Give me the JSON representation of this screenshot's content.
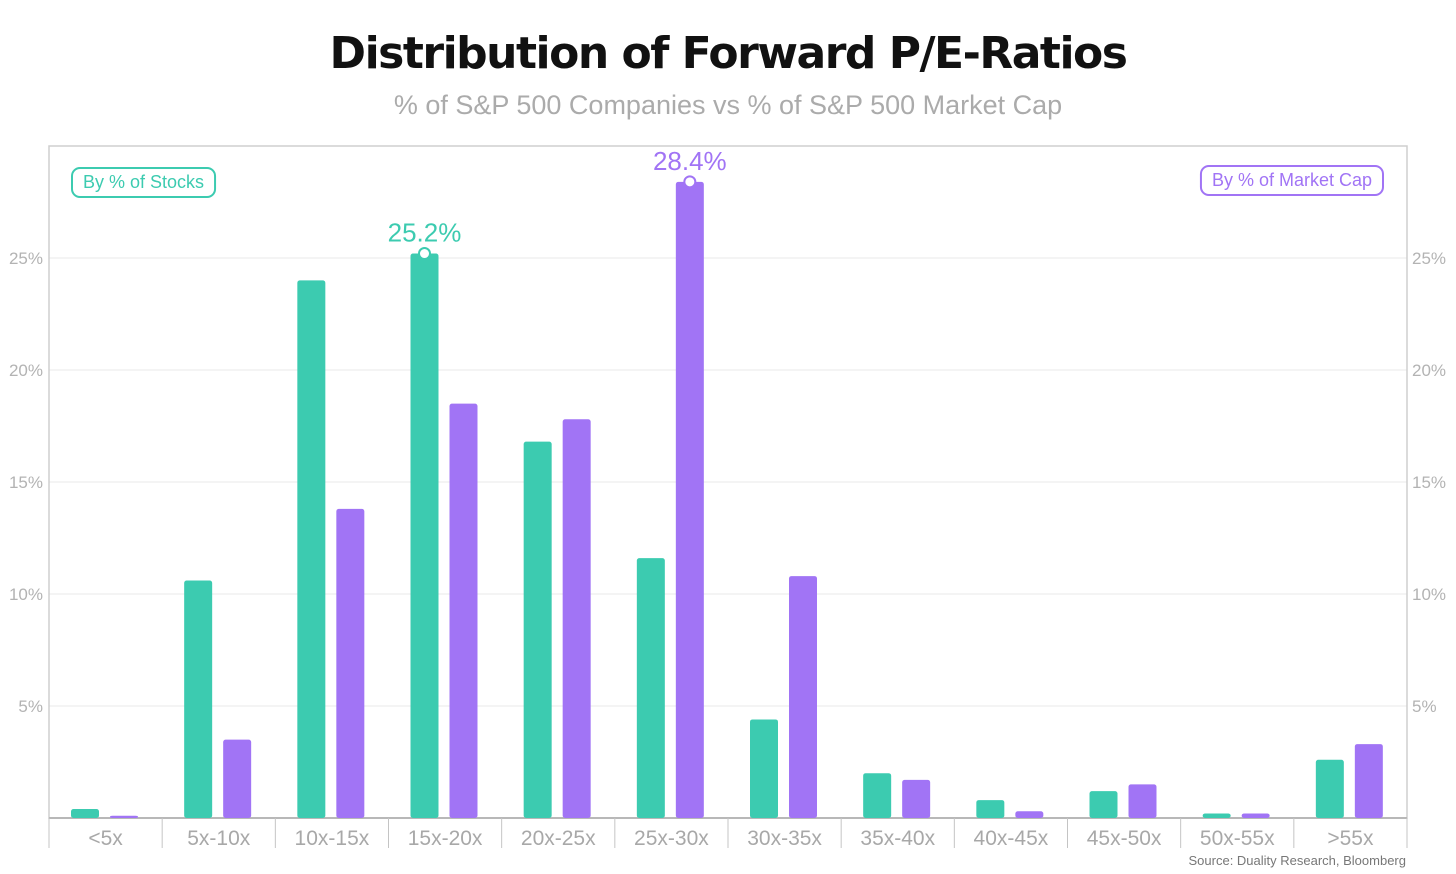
{
  "header": {
    "title": "Distribution of Forward P/E-Ratios",
    "subtitle": "% of S&P 500 Companies vs % of S&P 500 Market Cap"
  },
  "footer": {
    "source": "Source: Duality Research, Bloomberg"
  },
  "colors": {
    "stocks": "#3ccbb0",
    "market_cap": "#a174f5",
    "grid": "#e8e8e8",
    "frame": "#cfcfcf"
  },
  "chart_data": {
    "type": "bar",
    "title": "Distribution of Forward P/E-Ratios",
    "subtitle": "% of S&P 500 Companies vs % of S&P 500 Market Cap",
    "categories": [
      "<5x",
      "5x-10x",
      "10x-15x",
      "15x-20x",
      "20x-25x",
      "25x-30x",
      "30x-35x",
      "35x-40x",
      "40x-45x",
      "45x-50x",
      "50x-55x",
      ">55x"
    ],
    "series": [
      {
        "name": "By % of Stocks",
        "values": [
          0.4,
          10.6,
          24.0,
          25.2,
          16.8,
          11.6,
          4.4,
          2.0,
          0.8,
          1.2,
          0.2,
          2.6
        ]
      },
      {
        "name": "By % of Market Cap",
        "values": [
          0.1,
          3.5,
          13.8,
          18.5,
          17.8,
          28.4,
          10.8,
          1.7,
          0.3,
          1.5,
          0.2,
          3.3
        ]
      }
    ],
    "ylim": [
      0,
      30
    ],
    "yticks": [
      5,
      10,
      15,
      20,
      25
    ],
    "ytick_labels": [
      "5%",
      "10%",
      "15%",
      "20%",
      "25%"
    ],
    "y_axes": "left and right",
    "grid": true,
    "legend": [
      {
        "label": "By % of Stocks",
        "placement": "top-left"
      },
      {
        "label": "By % of Market Cap",
        "placement": "top-right"
      }
    ],
    "annotations": [
      {
        "series": 0,
        "category": "15x-20x",
        "text": "25.2%"
      },
      {
        "series": 1,
        "category": "25x-30x",
        "text": "28.4%"
      }
    ],
    "xlabel": "",
    "ylabel": ""
  }
}
